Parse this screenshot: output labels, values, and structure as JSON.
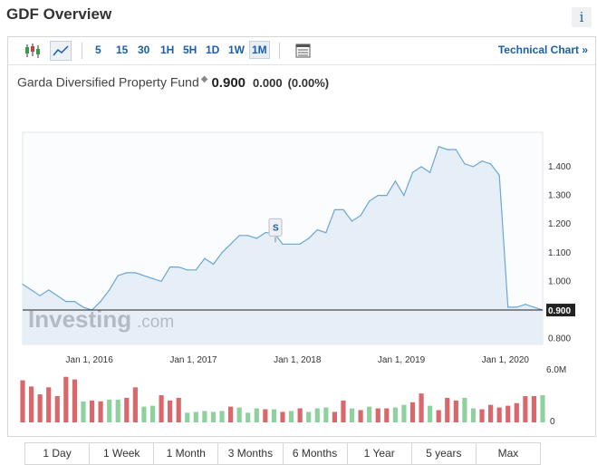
{
  "header": {
    "title": "GDF Overview",
    "info_label": "i"
  },
  "toolbar": {
    "intervals": [
      "5",
      "15",
      "30",
      "1H",
      "5H",
      "1D",
      "1W",
      "1M"
    ],
    "active_interval": "1M",
    "technical_link": "Technical Chart »"
  },
  "quote": {
    "name": "Garda Diversified Property Fund",
    "price": "0.900",
    "change": "0.000",
    "change_pct": "(0.00%)"
  },
  "watermark": {
    "brand": "Investing",
    "suffix": ".com"
  },
  "ranges": [
    "1 Day",
    "1 Week",
    "1 Month",
    "3 Months",
    "6 Months",
    "1 Year",
    "5 years",
    "Max"
  ],
  "colors": {
    "line": "#6aa6d6",
    "area": "#e6eff7",
    "vol_up": "#8fd19e",
    "vol_down": "#d9676b",
    "accent": "#1a5fa8"
  },
  "chart_data": {
    "type": "area",
    "price_marker": "0.900",
    "event_marker": "S",
    "xlabels": [
      "Jan 1, 2016",
      "Jan 1, 2017",
      "Jan 1, 2018",
      "Jan 1, 2019",
      "Jan 1, 2020"
    ],
    "yticks": [
      "0.800",
      "1.000",
      "1.100",
      "1.200",
      "1.300",
      "1.400"
    ],
    "ylim": [
      0.78,
      1.52
    ],
    "x": [
      "2015-05",
      "2015-06",
      "2015-07",
      "2015-08",
      "2015-09",
      "2015-10",
      "2015-11",
      "2015-12",
      "2016-01",
      "2016-02",
      "2016-03",
      "2016-04",
      "2016-05",
      "2016-06",
      "2016-07",
      "2016-08",
      "2016-09",
      "2016-10",
      "2016-11",
      "2016-12",
      "2017-01",
      "2017-02",
      "2017-03",
      "2017-04",
      "2017-05",
      "2017-06",
      "2017-07",
      "2017-08",
      "2017-09",
      "2017-10",
      "2017-11",
      "2017-12",
      "2018-01",
      "2018-02",
      "2018-03",
      "2018-04",
      "2018-05",
      "2018-06",
      "2018-07",
      "2018-08",
      "2018-09",
      "2018-10",
      "2018-11",
      "2018-12",
      "2019-01",
      "2019-02",
      "2019-03",
      "2019-04",
      "2019-05",
      "2019-06",
      "2019-07",
      "2019-08",
      "2019-09",
      "2019-10",
      "2019-11",
      "2019-12",
      "2020-01",
      "2020-02",
      "2020-03",
      "2020-04",
      "2020-05"
    ],
    "close": [
      0.99,
      0.97,
      0.95,
      0.97,
      0.95,
      0.93,
      0.93,
      0.91,
      0.9,
      0.93,
      0.97,
      1.02,
      1.03,
      1.03,
      1.02,
      1.01,
      1.0,
      1.05,
      1.05,
      1.04,
      1.04,
      1.08,
      1.06,
      1.1,
      1.13,
      1.16,
      1.16,
      1.15,
      1.17,
      1.17,
      1.13,
      1.13,
      1.13,
      1.15,
      1.18,
      1.17,
      1.25,
      1.25,
      1.21,
      1.23,
      1.28,
      1.3,
      1.3,
      1.35,
      1.3,
      1.38,
      1.4,
      1.38,
      1.47,
      1.46,
      1.46,
      1.41,
      1.4,
      1.42,
      1.41,
      1.37,
      0.91,
      0.91,
      0.92,
      0.91,
      0.9
    ],
    "volume_ylabels": [
      "6.0M",
      "0"
    ],
    "volume_ylim": [
      0,
      6.0
    ],
    "volume": [
      4.8,
      4.1,
      3.2,
      4.0,
      3.0,
      5.2,
      4.9,
      2.4,
      2.5,
      2.4,
      2.6,
      2.6,
      2.8,
      4.0,
      1.8,
      1.9,
      3.1,
      2.5,
      2.8,
      1.1,
      1.2,
      1.3,
      1.2,
      1.3,
      1.8,
      1.7,
      1.1,
      1.6,
      1.5,
      1.5,
      1.2,
      1.3,
      1.6,
      1.2,
      1.6,
      1.7,
      1.2,
      2.5,
      1.6,
      1.4,
      1.8,
      1.6,
      1.6,
      1.7,
      2.0,
      2.3,
      3.3,
      1.9,
      1.4,
      2.8,
      2.5,
      2.8,
      1.6,
      1.5,
      2.0,
      1.7,
      1.9,
      2.2,
      3.0,
      3.0,
      3.1
    ],
    "volume_up": [
      false,
      false,
      false,
      false,
      false,
      false,
      false,
      true,
      false,
      false,
      true,
      true,
      false,
      false,
      true,
      true,
      false,
      false,
      false,
      true,
      true,
      true,
      true,
      true,
      false,
      true,
      true,
      true,
      false,
      true,
      false,
      true,
      false,
      true,
      true,
      true,
      false,
      false,
      true,
      false,
      true,
      false,
      false,
      true,
      true,
      false,
      false,
      true,
      false,
      false,
      false,
      true,
      true,
      false,
      false,
      false,
      false,
      false,
      false,
      false,
      true
    ]
  }
}
